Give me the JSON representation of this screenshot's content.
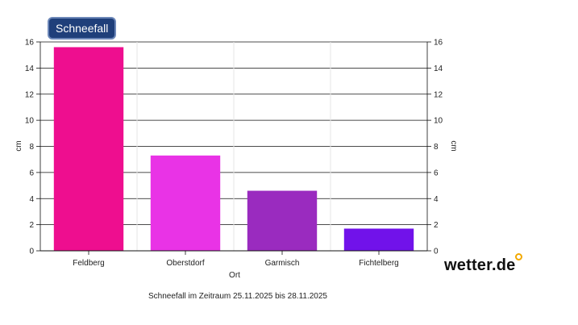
{
  "badge_label": "Schneefall",
  "caption": "Schneefall im Zeitraum 25.11.2025 bis 28.11.2025",
  "logo_text": "wetter.de",
  "chart_data": {
    "type": "bar",
    "title": "Schneefall",
    "categories": [
      "Feldberg",
      "Oberstdorf",
      "Garmisch",
      "Fichtelberg"
    ],
    "values": [
      15.6,
      7.3,
      4.6,
      1.7
    ],
    "colors": [
      "#ee0e8f",
      "#e933e6",
      "#9a2bbf",
      "#7112ea"
    ],
    "xlabel": "Ort",
    "ylabel": "cm",
    "ylabel_right": "cm",
    "ylim": [
      0,
      16
    ],
    "yticks": [
      0,
      2,
      4,
      6,
      8,
      10,
      12,
      14,
      16
    ],
    "grid": true,
    "legend": "none"
  }
}
